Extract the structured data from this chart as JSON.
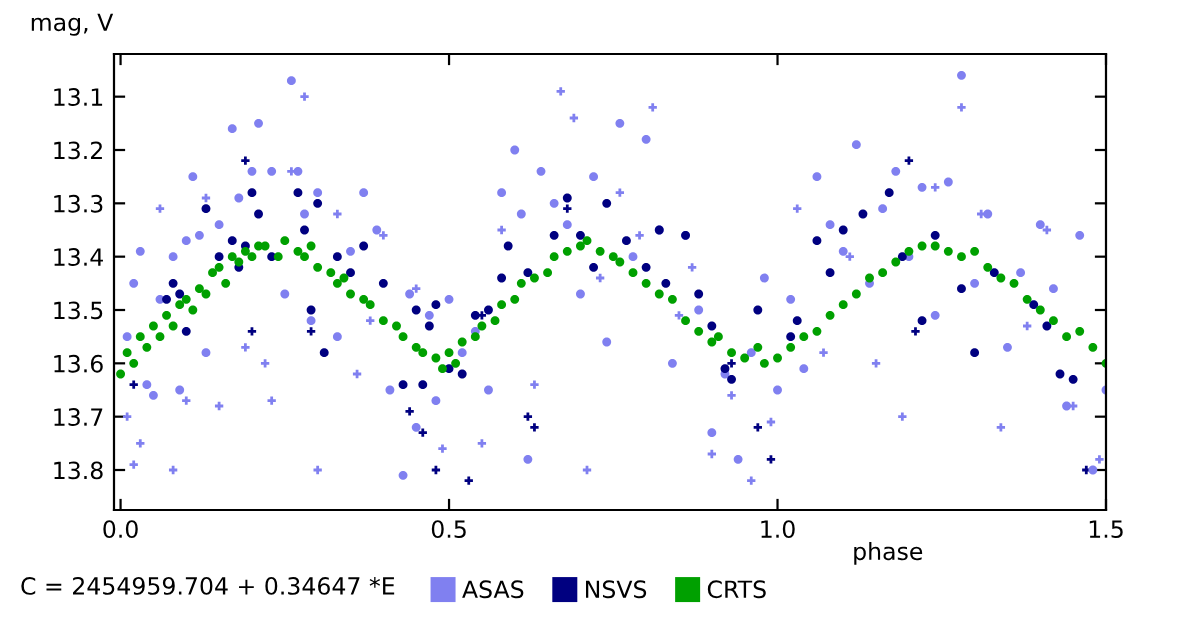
{
  "chart_data": {
    "type": "scatter",
    "ylabel": "mag, V",
    "xlabel": "phase",
    "xlim": [
      -0.01,
      1.5
    ],
    "xticks": [
      {
        "value": 0,
        "label": "0.0"
      },
      0.5,
      {
        "value": 1,
        "label": "1.0"
      },
      1.5
    ],
    "ylim": [
      13.875,
      13.02
    ],
    "yticks": [
      13.1,
      13.2,
      13.3,
      13.4,
      13.5,
      13.6,
      13.7,
      13.8
    ],
    "grid": false,
    "legend": "bottom",
    "annotations": [
      "C = 2454959.704 + 0.34647 *E"
    ],
    "series": [
      {
        "color": "#8080f0",
        "marker": "cross",
        "x": [
          0.01,
          0.02,
          0.03,
          0.06,
          0.08,
          0.1,
          0.13,
          0.15,
          0.19,
          0.22,
          0.23,
          0.26,
          0.28,
          0.3,
          0.33,
          0.36,
          0.38,
          0.4,
          0.45,
          0.49,
          0.55,
          0.58,
          0.63,
          0.67,
          0.69,
          0.71,
          0.73,
          0.76,
          0.79,
          0.81,
          0.85,
          0.87,
          0.9,
          0.93,
          0.96,
          0.99,
          1.03,
          1.07,
          1.11,
          1.15,
          1.19,
          1.24,
          1.28,
          1.31,
          1.34,
          1.38,
          1.41,
          1.45,
          1.49
        ],
        "values": [
          13.7,
          13.79,
          13.75,
          13.31,
          13.8,
          13.67,
          13.29,
          13.68,
          13.57,
          13.6,
          13.67,
          13.24,
          13.1,
          13.8,
          13.32,
          13.62,
          13.52,
          13.36,
          13.46,
          13.76,
          13.75,
          13.35,
          13.64,
          13.09,
          13.14,
          13.8,
          13.44,
          13.28,
          13.36,
          13.12,
          13.51,
          13.42,
          13.77,
          13.66,
          13.82,
          13.71,
          13.31,
          13.58,
          13.4,
          13.6,
          13.7,
          13.27,
          13.12,
          13.32,
          13.72,
          13.53,
          13.35,
          13.68,
          13.78
        ]
      },
      {
        "color": "#000080",
        "marker": "cross",
        "x": [
          0.02,
          0.19,
          0.2,
          0.29,
          0.44,
          0.46,
          0.48,
          0.53,
          0.55,
          0.62,
          0.63,
          0.68,
          0.93,
          0.97,
          0.99,
          1.2,
          1.21,
          1.47
        ],
        "values": [
          13.64,
          13.22,
          13.54,
          13.54,
          13.69,
          13.73,
          13.8,
          13.82,
          13.51,
          13.7,
          13.72,
          13.31,
          13.6,
          13.72,
          13.78,
          13.22,
          13.54,
          13.8
        ]
      },
      {
        "name": "ASAS",
        "color": "#8080f0",
        "marker": "circle",
        "x": [
          0.01,
          0.02,
          0.03,
          0.04,
          0.05,
          0.06,
          0.08,
          0.09,
          0.1,
          0.11,
          0.12,
          0.13,
          0.15,
          0.17,
          0.18,
          0.2,
          0.21,
          0.23,
          0.25,
          0.26,
          0.27,
          0.28,
          0.29,
          0.3,
          0.33,
          0.35,
          0.37,
          0.39,
          0.41,
          0.43,
          0.44,
          0.45,
          0.47,
          0.48,
          0.5,
          0.52,
          0.54,
          0.56,
          0.58,
          0.6,
          0.61,
          0.62,
          0.64,
          0.66,
          0.68,
          0.7,
          0.72,
          0.74,
          0.76,
          0.78,
          0.8,
          0.82,
          0.84,
          0.86,
          0.88,
          0.9,
          0.92,
          0.94,
          0.96,
          0.98,
          1.0,
          1.02,
          1.04,
          1.06,
          1.08,
          1.1,
          1.12,
          1.14,
          1.16,
          1.18,
          1.2,
          1.22,
          1.24,
          1.26,
          1.28,
          1.3,
          1.32,
          1.35,
          1.37,
          1.4,
          1.42,
          1.44,
          1.46,
          1.48,
          1.5
        ],
        "values": [
          13.55,
          13.45,
          13.39,
          13.64,
          13.66,
          13.48,
          13.4,
          13.65,
          13.37,
          13.25,
          13.36,
          13.58,
          13.34,
          13.16,
          13.29,
          13.24,
          13.15,
          13.24,
          13.47,
          13.07,
          13.24,
          13.32,
          13.52,
          13.28,
          13.55,
          13.39,
          13.28,
          13.35,
          13.65,
          13.81,
          13.47,
          13.72,
          13.51,
          13.67,
          13.48,
          13.58,
          13.54,
          13.65,
          13.28,
          13.2,
          13.32,
          13.78,
          13.24,
          13.3,
          13.34,
          13.47,
          13.25,
          13.56,
          13.15,
          13.4,
          13.18,
          13.35,
          13.6,
          13.36,
          13.5,
          13.73,
          13.62,
          13.78,
          13.58,
          13.44,
          13.65,
          13.48,
          13.61,
          13.25,
          13.34,
          13.39,
          13.19,
          13.45,
          13.31,
          13.24,
          13.4,
          13.27,
          13.51,
          13.26,
          13.06,
          13.45,
          13.32,
          13.57,
          13.43,
          13.34,
          13.46,
          13.68,
          13.36,
          13.8,
          13.65
        ]
      },
      {
        "name": "NSVS",
        "color": "#000080",
        "marker": "circle",
        "x": [
          0.07,
          0.08,
          0.09,
          0.1,
          0.13,
          0.15,
          0.17,
          0.18,
          0.19,
          0.2,
          0.21,
          0.23,
          0.27,
          0.28,
          0.29,
          0.3,
          0.31,
          0.33,
          0.35,
          0.37,
          0.4,
          0.43,
          0.45,
          0.46,
          0.47,
          0.48,
          0.5,
          0.52,
          0.54,
          0.56,
          0.58,
          0.59,
          0.62,
          0.66,
          0.68,
          0.7,
          0.72,
          0.74,
          0.77,
          0.8,
          0.82,
          0.83,
          0.86,
          0.88,
          0.9,
          0.92,
          0.93,
          0.97,
          1.02,
          1.03,
          1.06,
          1.08,
          1.1,
          1.13,
          1.17,
          1.19,
          1.22,
          1.24,
          1.28,
          1.3,
          1.33,
          1.39,
          1.41,
          1.43,
          1.45
        ],
        "values": [
          13.48,
          13.45,
          13.47,
          13.54,
          13.31,
          13.4,
          13.37,
          13.42,
          13.38,
          13.28,
          13.32,
          13.4,
          13.28,
          13.35,
          13.5,
          13.3,
          13.58,
          13.4,
          13.43,
          13.38,
          13.45,
          13.64,
          13.5,
          13.64,
          13.53,
          13.49,
          13.61,
          13.62,
          13.51,
          13.5,
          13.44,
          13.38,
          13.43,
          13.36,
          13.29,
          13.36,
          13.42,
          13.3,
          13.37,
          13.42,
          13.35,
          13.45,
          13.36,
          13.47,
          13.53,
          13.61,
          13.63,
          13.5,
          13.55,
          13.52,
          13.37,
          13.43,
          13.35,
          13.32,
          13.28,
          13.4,
          13.52,
          13.36,
          13.46,
          13.58,
          13.43,
          13.49,
          13.53,
          13.62,
          13.63
        ]
      },
      {
        "name": "CRTS",
        "color": "#00a000",
        "marker": "circle",
        "x": [
          0.0,
          0.01,
          0.02,
          0.03,
          0.04,
          0.05,
          0.06,
          0.07,
          0.08,
          0.09,
          0.1,
          0.11,
          0.12,
          0.13,
          0.14,
          0.15,
          0.16,
          0.17,
          0.18,
          0.19,
          0.2,
          0.21,
          0.22,
          0.24,
          0.25,
          0.27,
          0.28,
          0.29,
          0.3,
          0.32,
          0.33,
          0.34,
          0.35,
          0.37,
          0.38,
          0.4,
          0.42,
          0.43,
          0.45,
          0.46,
          0.48,
          0.49,
          0.5,
          0.51,
          0.52,
          0.54,
          0.55,
          0.57,
          0.58,
          0.6,
          0.61,
          0.63,
          0.65,
          0.66,
          0.68,
          0.7,
          0.71,
          0.73,
          0.75,
          0.76,
          0.78,
          0.8,
          0.82,
          0.84,
          0.86,
          0.88,
          0.9,
          0.91,
          0.93,
          0.95,
          0.97,
          0.98,
          1.0,
          1.02,
          1.04,
          1.06,
          1.08,
          1.1,
          1.12,
          1.14,
          1.16,
          1.18,
          1.2,
          1.22,
          1.24,
          1.26,
          1.28,
          1.3,
          1.32,
          1.34,
          1.36,
          1.38,
          1.4,
          1.42,
          1.44,
          1.46,
          1.48,
          1.5
        ],
        "values": [
          13.62,
          13.58,
          13.6,
          13.55,
          13.57,
          13.53,
          13.55,
          13.51,
          13.53,
          13.49,
          13.48,
          13.5,
          13.46,
          13.47,
          13.43,
          13.42,
          13.45,
          13.4,
          13.41,
          13.39,
          13.4,
          13.38,
          13.38,
          13.4,
          13.37,
          13.39,
          13.4,
          13.38,
          13.42,
          13.43,
          13.45,
          13.44,
          13.47,
          13.48,
          13.49,
          13.52,
          13.53,
          13.55,
          13.57,
          13.58,
          13.59,
          13.61,
          13.58,
          13.6,
          13.56,
          13.55,
          13.53,
          13.52,
          13.49,
          13.48,
          13.45,
          13.44,
          13.43,
          13.4,
          13.39,
          13.38,
          13.37,
          13.39,
          13.4,
          13.41,
          13.43,
          13.45,
          13.47,
          13.48,
          13.52,
          13.54,
          13.56,
          13.55,
          13.58,
          13.59,
          13.57,
          13.6,
          13.59,
          13.57,
          13.55,
          13.54,
          13.51,
          13.49,
          13.47,
          13.44,
          13.43,
          13.41,
          13.39,
          13.38,
          13.38,
          13.39,
          13.4,
          13.39,
          13.42,
          13.44,
          13.45,
          13.48,
          13.5,
          13.52,
          13.55,
          13.54,
          13.57,
          13.6
        ]
      }
    ]
  }
}
